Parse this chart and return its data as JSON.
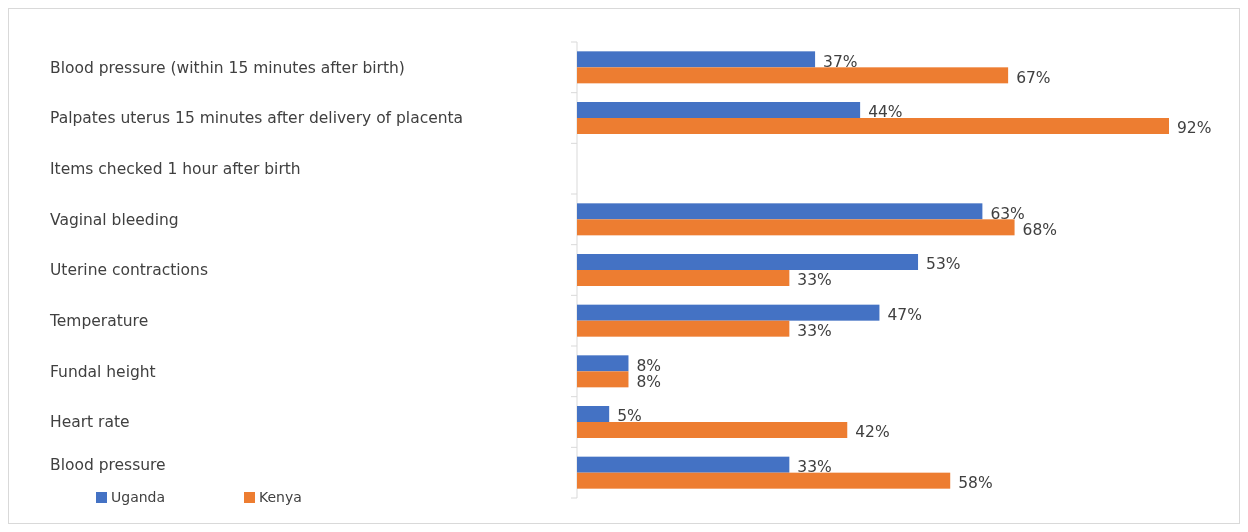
{
  "chart_data": {
    "type": "bar",
    "orientation": "horizontal",
    "categories": [
      "Blood pressure (within 15 minutes after birth)",
      "Palpates uterus 15 minutes after delivery of placenta",
      "Items checked 1 hour after birth",
      "Vaginal bleeding",
      "Uterine contractions",
      "Temperature",
      "Fundal height",
      "Heart rate",
      "Blood pressure"
    ],
    "series": [
      {
        "name": "Uganda",
        "color": "#4472c4",
        "values": [
          37,
          44,
          null,
          63,
          53,
          47,
          8,
          5,
          33
        ],
        "value_labels": [
          "37%",
          "44%",
          null,
          "63%",
          "53%",
          "47%",
          "8%",
          "5%",
          "33%"
        ]
      },
      {
        "name": "Kenya",
        "color": "#ed7d31",
        "values": [
          67,
          92,
          null,
          68,
          33,
          33,
          8,
          42,
          58
        ],
        "value_labels": [
          "67%",
          "92%",
          null,
          "68%",
          "33%",
          "33%",
          "8%",
          "42%",
          "58%"
        ]
      }
    ],
    "legend": "bottom left"
  }
}
